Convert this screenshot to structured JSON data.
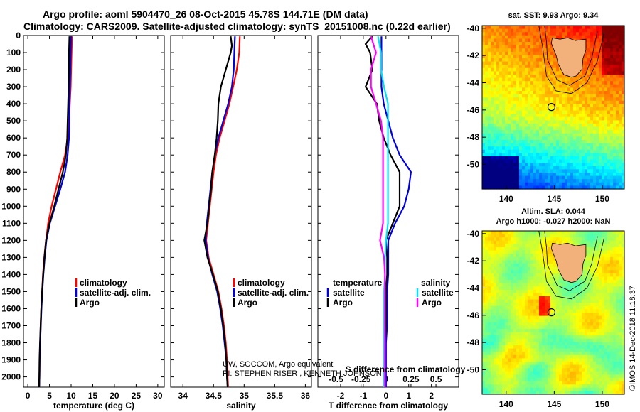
{
  "header": {
    "title_line1": "Argo profile: aoml 5904470_26 08-Oct-2015 45.78S 144.71E (DM data)",
    "title_line2": "Climatology: CARS2009. Satellite-adjusted climatology: synTS_20151008.nc (0.22d earlier)"
  },
  "colors": {
    "climatology": "#ff0000",
    "satellite": "#0000dd",
    "argo": "#000000",
    "argo_salinity": "#ff00ff",
    "satellite_salinity": "#00e0ff",
    "land": "#f2b07a"
  },
  "chart_data": [
    {
      "type": "line",
      "id": "temperature",
      "xlabel": "temperature (deg C)",
      "ylabel": "",
      "xlim": [
        -1,
        31.5
      ],
      "ylim": [
        2060,
        0
      ],
      "xticks": [
        0,
        5,
        10,
        15,
        20,
        25,
        30
      ],
      "xtick_labels": [
        "0",
        "5",
        "10",
        "15",
        "20",
        "25",
        "30"
      ],
      "yticks": [
        0,
        100,
        200,
        300,
        400,
        500,
        600,
        700,
        800,
        900,
        1000,
        1100,
        1200,
        1300,
        1400,
        1500,
        1600,
        1700,
        1800,
        1900,
        2000
      ],
      "ytick_labels": [
        "0",
        "100",
        "200",
        "300",
        "400",
        "500",
        "600",
        "700",
        "800",
        "900",
        "1000",
        "1100",
        "1200",
        "1300",
        "1400",
        "1500",
        "1600",
        "1700",
        "1800",
        "1900",
        "2000"
      ],
      "legend": [
        "climatology",
        "satellite-adj. clim.",
        "Argo"
      ],
      "series": [
        {
          "name": "climatology",
          "depth": [
            5,
            100,
            200,
            300,
            400,
            500,
            600,
            700,
            800,
            900,
            1000,
            1100,
            1200,
            1300,
            1400,
            1500,
            1600,
            1700,
            1800,
            1900,
            2000,
            2060
          ],
          "values": [
            10.2,
            10.1,
            10.0,
            9.9,
            9.7,
            9.5,
            9.2,
            8.6,
            7.5,
            6.5,
            5.5,
            4.7,
            4.2,
            3.8,
            3.5,
            3.3,
            3.1,
            2.95,
            2.85,
            2.75,
            2.7,
            2.65
          ]
        },
        {
          "name": "satellite-adj. clim.",
          "depth": [
            5,
            100,
            200,
            300,
            400,
            500,
            600,
            700,
            800,
            900,
            1000,
            1100,
            1200,
            1300,
            1400,
            1500,
            1600,
            1700,
            1800,
            1900,
            2000,
            2060
          ],
          "values": [
            10.0,
            9.9,
            9.8,
            9.7,
            9.6,
            9.6,
            9.5,
            9.2,
            8.6,
            7.5,
            6.3,
            5.1,
            4.3,
            3.9,
            3.6,
            3.35,
            3.15,
            3.0,
            2.85,
            2.75,
            2.7,
            2.65
          ]
        },
        {
          "name": "Argo",
          "depth": [
            5,
            100,
            200,
            300,
            400,
            500,
            600,
            700,
            800,
            900,
            1000,
            1100,
            1200,
            1300,
            1400,
            1500,
            1600,
            1700,
            1800,
            1900,
            2000,
            2060
          ],
          "values": [
            9.6,
            9.5,
            9.5,
            9.4,
            9.3,
            9.2,
            9.1,
            8.8,
            8.1,
            7.1,
            6.1,
            5.0,
            4.2,
            3.85,
            3.55,
            3.3,
            3.1,
            2.95,
            2.8,
            2.7,
            2.65,
            2.6
          ]
        }
      ]
    },
    {
      "type": "line",
      "id": "salinity",
      "xlabel": "salinity",
      "xlim": [
        33.8,
        36.1
      ],
      "ylim": [
        2060,
        0
      ],
      "xticks": [
        34,
        34.5,
        35,
        35.5,
        36
      ],
      "xtick_labels": [
        "34",
        "34.5",
        "35",
        "35.5",
        "36"
      ],
      "legend": [
        "climatology",
        "satellite-adj. clim.",
        "Argo"
      ],
      "annotations": [
        "UW, SOCCOM, Argo equivalent",
        "PI: STEPHEN RISER , KENNETH JOHNSON"
      ],
      "series": [
        {
          "name": "climatology",
          "depth": [
            5,
            100,
            200,
            300,
            400,
            500,
            600,
            700,
            800,
            900,
            1000,
            1100,
            1200,
            1300,
            1400,
            1500,
            1600,
            1700,
            1800,
            1900,
            2000,
            2060
          ],
          "values": [
            34.93,
            34.92,
            34.88,
            34.82,
            34.76,
            34.68,
            34.6,
            34.54,
            34.5,
            34.47,
            34.44,
            34.41,
            34.38,
            34.42,
            34.5,
            34.58,
            34.63,
            34.67,
            34.7,
            34.72,
            34.73,
            34.74
          ]
        },
        {
          "name": "satellite-adj. clim.",
          "depth": [
            5,
            100,
            200,
            300,
            400,
            500,
            600,
            700,
            800,
            900,
            1000,
            1100,
            1200,
            1300,
            1400,
            1500,
            1600,
            1700,
            1800,
            1900,
            2000,
            2060
          ],
          "values": [
            34.85,
            34.84,
            34.83,
            34.8,
            34.74,
            34.66,
            34.58,
            34.52,
            34.48,
            34.45,
            34.42,
            34.39,
            34.37,
            34.41,
            34.48,
            34.56,
            34.61,
            34.65,
            34.68,
            34.71,
            34.72,
            34.73
          ]
        },
        {
          "name": "Argo",
          "depth": [
            5,
            60,
            100,
            200,
            300,
            400,
            500,
            600,
            700,
            800,
            900,
            1000,
            1100,
            1200,
            1300,
            1400,
            1500,
            1600,
            1700,
            1800,
            1900,
            2000,
            2060
          ],
          "values": [
            34.78,
            34.8,
            34.78,
            34.7,
            34.62,
            34.58,
            34.57,
            34.55,
            34.52,
            34.48,
            34.46,
            34.43,
            34.4,
            34.35,
            34.4,
            34.49,
            34.57,
            34.62,
            34.66,
            34.69,
            34.71,
            34.72,
            34.73
          ]
        }
      ]
    },
    {
      "type": "line",
      "id": "differences",
      "xlabel": "T difference from climatology",
      "top_xlabel": "S difference from climatology",
      "xlim": [
        -3,
        3.2
      ],
      "ylim": [
        2060,
        0
      ],
      "xticks": [
        -2,
        -1,
        0,
        1,
        2
      ],
      "xtick_labels": [
        "-2",
        "-1",
        "0",
        "1",
        "2"
      ],
      "top_xticks": [
        -0.5,
        -0.25,
        0,
        0.25,
        0.5
      ],
      "top_xtick_labels": [
        "-0.5",
        "-0.25",
        "0",
        "0.25",
        "0.5"
      ],
      "legend_temperature_title": "temperature",
      "legend_salinity_title": "salinity",
      "legend_temperature": [
        "satellite",
        "Argo"
      ],
      "legend_salinity": [
        "satellite",
        "Argo"
      ],
      "series": [
        {
          "name": "T satellite",
          "depth": [
            5,
            100,
            200,
            300,
            400,
            500,
            600,
            700,
            800,
            900,
            1000,
            1100,
            1200,
            1300,
            1400,
            1500,
            1600,
            1700,
            1800,
            1900,
            2000,
            2060
          ],
          "values": [
            -0.2,
            -0.2,
            -0.2,
            -0.2,
            -0.1,
            0.1,
            0.3,
            0.6,
            1.1,
            1.0,
            0.8,
            0.4,
            0.1,
            0.1,
            0.1,
            0.05,
            0.05,
            0.05,
            0.0,
            0.0,
            0.0,
            0.0
          ]
        },
        {
          "name": "T Argo",
          "depth": [
            5,
            50,
            100,
            200,
            300,
            400,
            500,
            600,
            700,
            800,
            900,
            1000,
            1100,
            1200,
            1300,
            1400,
            1500,
            1600,
            1700,
            1800,
            1900,
            2000,
            2060
          ],
          "values": [
            -0.6,
            -0.9,
            -0.7,
            -0.6,
            -0.9,
            -0.4,
            -0.3,
            -0.1,
            0.2,
            0.6,
            0.6,
            0.6,
            0.3,
            0.0,
            0.05,
            0.05,
            0.0,
            0.0,
            0.0,
            -0.05,
            -0.05,
            -0.05,
            -0.05
          ]
        },
        {
          "name": "S satellite",
          "depth": [
            5,
            100,
            200,
            300,
            400,
            500,
            600,
            700,
            800,
            900,
            1000,
            1100,
            1200,
            1300,
            1400,
            1500,
            1600,
            1700,
            1800,
            1900,
            2000,
            2060
          ],
          "values": [
            -0.08,
            -0.05,
            -0.05,
            -0.02,
            0.02,
            0.02,
            0.02,
            0.02,
            0.02,
            0.02,
            0.02,
            0.02,
            0.0,
            -0.01,
            -0.01,
            -0.02,
            -0.02,
            -0.02,
            -0.02,
            -0.02,
            -0.02,
            -0.02
          ]
        },
        {
          "name": "S Argo",
          "depth": [
            5,
            100,
            200,
            300,
            400,
            500,
            600,
            700,
            800,
            900,
            1000,
            1100,
            1200,
            1300,
            1400,
            1500,
            1600,
            1700,
            1800,
            1900,
            2000,
            2060
          ],
          "values": [
            -0.15,
            -0.1,
            -0.15,
            -0.15,
            -0.1,
            -0.05,
            -0.03,
            -0.03,
            -0.03,
            -0.03,
            -0.03,
            -0.03,
            -0.06,
            -0.02,
            -0.01,
            -0.01,
            -0.01,
            -0.01,
            -0.01,
            -0.01,
            -0.01,
            -0.01
          ]
        }
      ]
    },
    {
      "type": "heatmap",
      "id": "sst_map",
      "title": "sat. SST: 9.93 Argo: 9.34",
      "xlim": [
        137.5,
        152.3
      ],
      "ylim": [
        -51.8,
        -39.8
      ],
      "xticks": [
        140,
        145,
        150
      ],
      "xtick_labels": [
        "140",
        "145",
        "150"
      ],
      "yticks": [
        -40,
        -42,
        -44,
        -46,
        -48,
        -50
      ],
      "ytick_labels": [
        "-40",
        "-42",
        "-44",
        "-46",
        "-48",
        "-50"
      ],
      "marker": {
        "lon": 144.71,
        "lat": -45.78
      }
    },
    {
      "type": "heatmap",
      "id": "sla_map",
      "title_line1": "Altim. SLA: 0.044",
      "title_line2": "Argo h1000: -0.027 h2000: NaN",
      "xlim": [
        137.5,
        152.3
      ],
      "ylim": [
        -51.8,
        -39.8
      ],
      "xticks": [
        140,
        145,
        150
      ],
      "xtick_labels": [
        "140",
        "145",
        "150"
      ],
      "yticks": [
        -40,
        -42,
        -44,
        -46,
        -48,
        -50
      ],
      "ytick_labels": [
        "-40",
        "-42",
        "-44",
        "-46",
        "-48",
        "-50"
      ],
      "marker": {
        "lon": 144.71,
        "lat": -45.78
      }
    }
  ],
  "credit": "©IMOS 14-Dec-2018 11:18:37"
}
